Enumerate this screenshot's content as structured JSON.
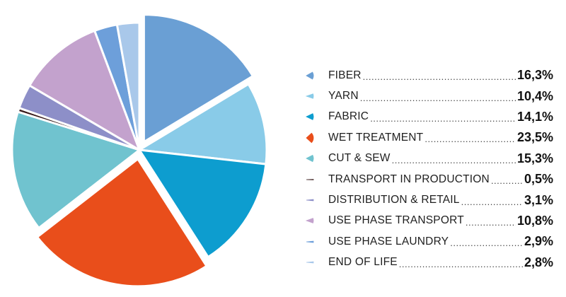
{
  "chart_data": {
    "type": "pie",
    "title": "",
    "unit": "%",
    "categories": [
      "FIBER",
      "YARN",
      "FABRIC",
      "WET TREATMENT",
      "CUT & SEW",
      "TRANSPORT IN PRODUCTION",
      "DISTRIBUTION & RETAIL",
      "USE PHASE TRANSPORT",
      "USE PHASE LAUNDRY",
      "END OF LIFE"
    ],
    "values": [
      16.3,
      10.4,
      14.1,
      23.5,
      15.3,
      0.5,
      3.1,
      10.8,
      2.9,
      2.8
    ],
    "value_labels": [
      "16,3%",
      "10,4%",
      "14,1%",
      "23,5%",
      "15,3%",
      "0,5%",
      "3,1%",
      "10,8%",
      "2,9%",
      "2,8%"
    ],
    "colors": [
      "#6a9fd4",
      "#89cbe8",
      "#0d9dcf",
      "#e94e1b",
      "#70c3cf",
      "#3a1c1c",
      "#8d8fc8",
      "#c3a2cd",
      "#6d9fda",
      "#a9c8ea"
    ],
    "exploded": [
      true,
      false,
      false,
      true,
      false,
      false,
      false,
      false,
      false,
      false
    ],
    "legend_position": "right",
    "start_angle_deg": 0,
    "direction": "clockwise"
  }
}
